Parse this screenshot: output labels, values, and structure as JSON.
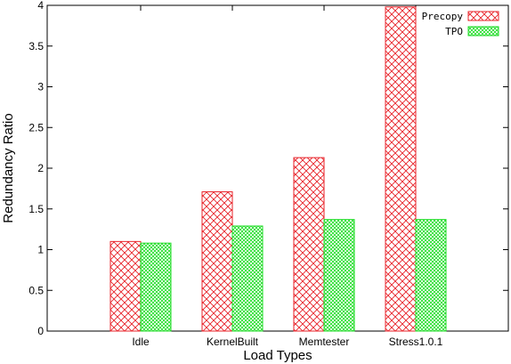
{
  "chart_data": {
    "type": "bar",
    "title": "",
    "xlabel": "Load Types",
    "ylabel": "Redundancy Ratio",
    "categories": [
      "Idle",
      "KernelBuilt",
      "Memtester",
      "Stress1.0.1"
    ],
    "series": [
      {
        "name": "Precopy",
        "values": [
          1.1,
          1.71,
          2.13,
          3.98
        ],
        "color": "#e8232a",
        "pattern": "diagonal-crosshatch"
      },
      {
        "name": "TPO",
        "values": [
          1.08,
          1.29,
          1.37,
          1.37
        ],
        "color": "#1ddc24",
        "pattern": "fine-crosshatch"
      }
    ],
    "ylim": [
      0,
      4
    ],
    "yticks": [
      "0",
      "0.5",
      "1",
      "1.5",
      "2",
      "2.5",
      "3",
      "3.5",
      "4"
    ],
    "grid": false,
    "legend_position": "top-right"
  }
}
